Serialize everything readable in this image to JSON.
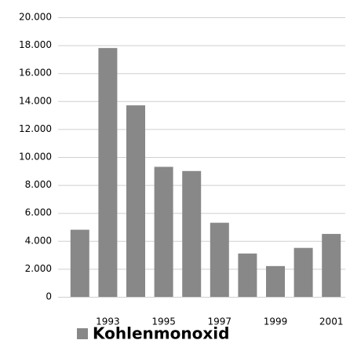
{
  "chart_data": {
    "type": "bar",
    "categories": [
      null,
      "1993",
      null,
      "1995",
      null,
      "1997",
      null,
      "1999",
      null,
      "2001"
    ],
    "series": [
      {
        "name": "Kohlenmonoxid",
        "color": "#888888",
        "values": [
          4800,
          17800,
          13700,
          9300,
          9000,
          5300,
          3100,
          2200,
          3500,
          4500
        ]
      }
    ],
    "ylim": [
      0,
      20000
    ],
    "yticks": [
      0,
      {
        "value": 2000,
        "label": "2.000"
      },
      {
        "value": 4000,
        "label": "4.000"
      },
      {
        "value": 6000,
        "label": "6.000"
      },
      {
        "value": 8000,
        "label": "8.000"
      },
      {
        "value": 10000,
        "label": "10.000"
      },
      {
        "value": 12000,
        "label": "12.000"
      },
      {
        "value": 14000,
        "label": "14.000"
      },
      {
        "value": 16000,
        "label": "16.000"
      },
      {
        "value": 18000,
        "label": "18.000"
      },
      {
        "value": 20000,
        "label": "20.000"
      }
    ],
    "grid": true,
    "legend": "bottom"
  }
}
